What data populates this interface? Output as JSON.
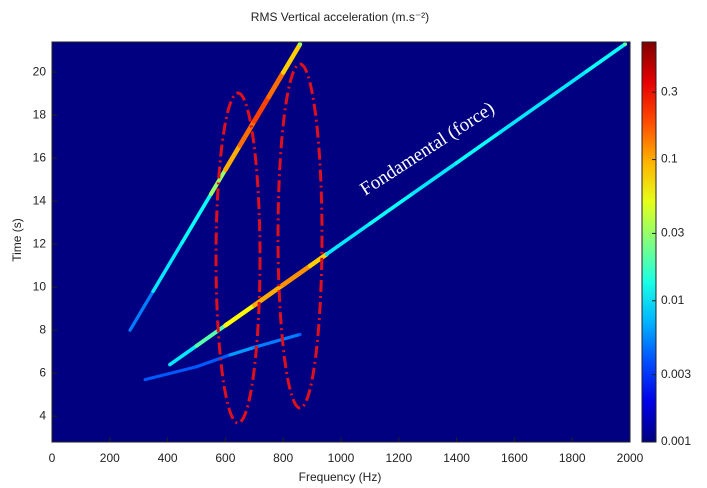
{
  "chart_data": {
    "type": "spectrogram",
    "title": "RMS Vertical acceleration (m.s⁻²)",
    "x_label": "Frequency (Hz)",
    "y_label": "Time (s)",
    "annotation": "Fondamental (force)",
    "xlim": [
      0,
      2000
    ],
    "xticks": [
      0,
      200,
      400,
      600,
      800,
      1000,
      1200,
      1400,
      1600,
      1800,
      2000
    ],
    "ylim": [
      2.8,
      21.4
    ],
    "yticks": [
      4,
      6,
      8,
      10,
      12,
      14,
      16,
      18,
      20
    ],
    "colormap": "jet",
    "color_scale": "log",
    "clim": [
      0.001,
      0.68
    ],
    "cticks": [
      0.001,
      0.003,
      0.01,
      0.03,
      0.1,
      0.3
    ],
    "ridges": [
      {
        "x": [
          408,
          500,
          600,
          700,
          800,
          893,
          950,
          1100,
          1250,
          1400,
          1550,
          1700,
          1850,
          1983
        ],
        "y": [
          6.4,
          7.27,
          8.22,
          9.16,
          10.11,
          10.99,
          11.53,
          12.95,
          14.37,
          15.78,
          17.2,
          18.62,
          20.04,
          21.3
        ],
        "values": [
          0.01,
          0.02,
          0.06,
          0.1,
          0.12,
          0.08,
          0.01,
          0.012,
          0.01,
          0.012,
          0.01,
          0.01,
          0.012,
          0.02
        ]
      },
      {
        "x": [
          270,
          350,
          450,
          550,
          600,
          650,
          700,
          750,
          800,
          858
        ],
        "y": [
          8.0,
          9.81,
          12.07,
          14.33,
          15.46,
          16.59,
          17.72,
          18.85,
          19.98,
          21.29
        ],
        "values": [
          0.005,
          0.01,
          0.012,
          0.03,
          0.1,
          0.15,
          0.2,
          0.15,
          0.08,
          0.03
        ]
      },
      {
        "x": [
          322,
          500,
          616,
          700,
          858
        ],
        "y": [
          5.7,
          6.3,
          6.85,
          7.2,
          7.8
        ],
        "values": [
          0.004,
          0.004,
          0.006,
          0.005,
          0.004
        ]
      }
    ]
  }
}
